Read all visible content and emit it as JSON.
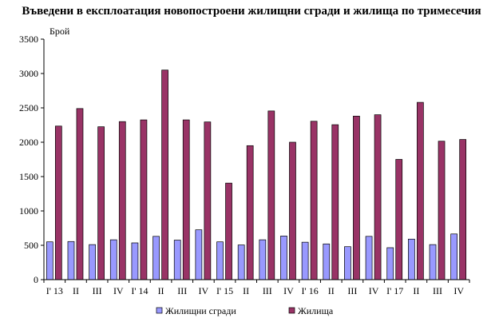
{
  "chart_data": {
    "type": "bar",
    "title": "Въведени в експлоатация новопостроени жилищни сгради и жилища по тримесечия",
    "ylabel": "Брой",
    "xlabel": "",
    "ylim": [
      0,
      3500
    ],
    "yticks": [
      0,
      500,
      1000,
      1500,
      2000,
      2500,
      3000,
      3500
    ],
    "grid": false,
    "legend_position": "bottom",
    "categories": [
      "I' 13",
      "II",
      "III",
      "IV",
      "I' 14",
      "II",
      "III",
      "IV",
      "I' 15",
      "II",
      "III",
      "IV",
      "I' 16",
      "II",
      "III",
      "IV",
      "I' 17",
      "II",
      "III",
      "IV"
    ],
    "series": [
      {
        "name": "Жилищни сгради",
        "color": "#9999ff",
        "values": [
          550,
          555,
          510,
          580,
          535,
          630,
          575,
          725,
          550,
          505,
          580,
          635,
          545,
          520,
          480,
          630,
          465,
          590,
          510,
          665
        ]
      },
      {
        "name": "Жилища",
        "color": "#993366",
        "values": [
          2235,
          2490,
          2225,
          2300,
          2325,
          3050,
          2325,
          2295,
          1405,
          1950,
          2455,
          2000,
          2305,
          2255,
          2380,
          2400,
          1750,
          2580,
          2015,
          2040
        ]
      }
    ]
  }
}
